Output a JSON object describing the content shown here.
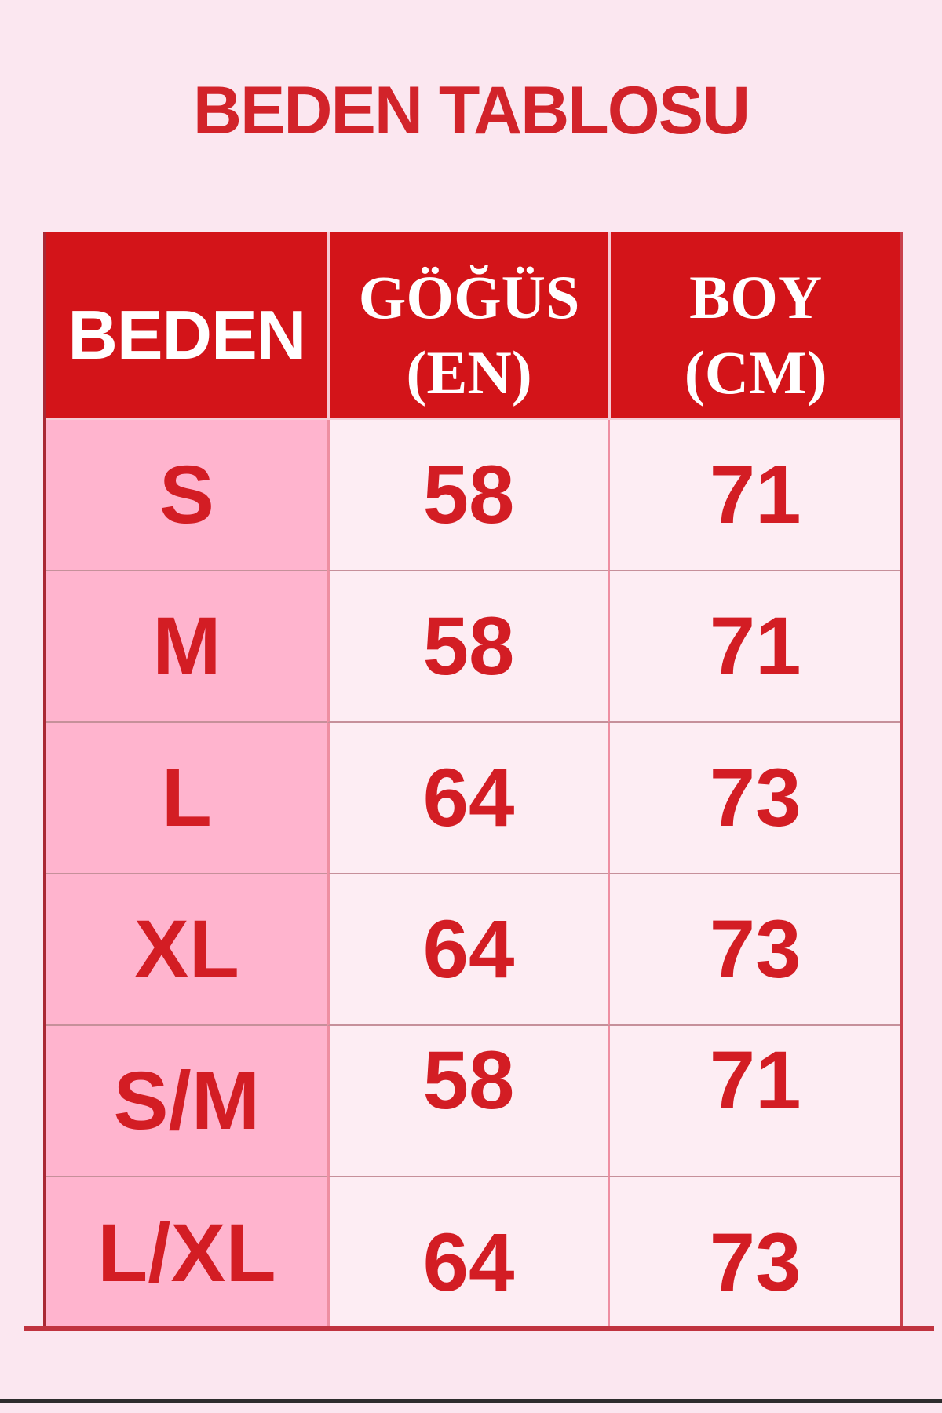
{
  "page": {
    "title": "BEDEN TABLOSU"
  },
  "table": {
    "header": {
      "size": "BEDEN",
      "chest_line1": "GÖĞÜS",
      "chest_line2": "(EN)",
      "length_line1": "BOY",
      "length_line2": "(CM)"
    },
    "rows": [
      {
        "size": "S",
        "chest": "58",
        "length": "71"
      },
      {
        "size": "M",
        "chest": "58",
        "length": "71"
      },
      {
        "size": "L",
        "chest": "64",
        "length": "73"
      },
      {
        "size": "XL",
        "chest": "64",
        "length": "73"
      },
      {
        "size": "S/M",
        "chest": "58",
        "length": "71"
      },
      {
        "size": "L/XL",
        "chest": "64",
        "length": "73"
      }
    ]
  },
  "colors": {
    "background": "#fbe7f0",
    "header_red": "#d31419",
    "title_red": "#d2232a",
    "value_red": "#d31d24",
    "size_column_pink": "#ffb4ce",
    "value_cell_pink": "#fdedf3",
    "bottom_rule_red": "#c0333f"
  },
  "chart_data": {
    "type": "table",
    "title": "BEDEN TABLOSU",
    "columns": [
      "BEDEN",
      "GÖĞÜS (EN)",
      "BOY (CM)"
    ],
    "rows": [
      [
        "S",
        58,
        71
      ],
      [
        "M",
        58,
        71
      ],
      [
        "L",
        64,
        73
      ],
      [
        "XL",
        64,
        73
      ],
      [
        "S/M",
        58,
        71
      ],
      [
        "L/XL",
        64,
        73
      ]
    ]
  }
}
